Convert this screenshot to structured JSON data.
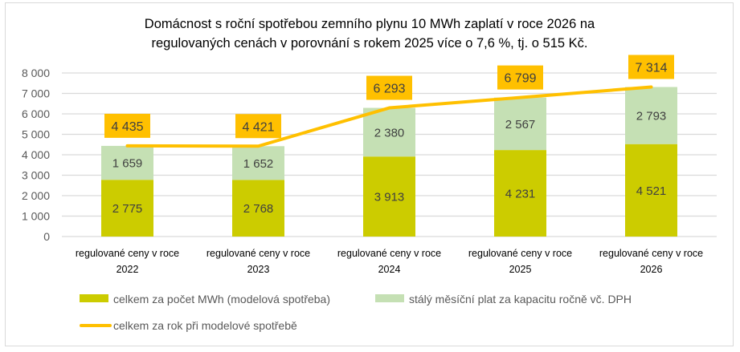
{
  "chart_data": {
    "type": "bar",
    "stacked": true,
    "title": "Domácnost s roční spotřebou zemního plynu 10 MWh zaplatí v roce 2026 na regulovaných cenách v porovnání s rokem 2025 více o 7,6 %, tj. o 515 Kč.",
    "title_lines": [
      "Domácnost s roční spotřebou zemního plynu 10 MWh zaplatí v roce 2026 na",
      "regulovaných cenách v porovnání s rokem 2025 více o 7,6 %, tj. o 515 Kč."
    ],
    "categories": [
      [
        "regulované ceny v roce",
        "2022"
      ],
      [
        "regulované ceny v roce",
        "2023"
      ],
      [
        "regulované ceny v roce",
        "2024"
      ],
      [
        "regulované ceny v roce",
        "2025"
      ],
      [
        "regulované ceny v roce",
        "2026"
      ]
    ],
    "series": [
      {
        "name": "celkem za počet MWh (modelová spotřeba)",
        "kind": "bar",
        "color": "#cccc00",
        "values": [
          2775,
          2768,
          3913,
          4231,
          4521
        ],
        "labels": [
          "2 775",
          "2 768",
          "3 913",
          "4 231",
          "4 521"
        ]
      },
      {
        "name": "stálý měsíční plat za kapacitu ročně vč. DPH",
        "kind": "bar",
        "color": "#c5e0b4",
        "values": [
          1659,
          1652,
          2380,
          2567,
          2793
        ],
        "labels": [
          "1 659",
          "1 652",
          "2 380",
          "2 567",
          "2 793"
        ]
      },
      {
        "name": "celkem za rok při modelové spotřebě",
        "kind": "line",
        "color": "#ffc000",
        "values": [
          4435,
          4421,
          6293,
          6799,
          7314
        ],
        "labels": [
          "4 435",
          "4 421",
          "6 293",
          "6 799",
          "7 314"
        ]
      }
    ],
    "y_ticks": [
      0,
      1000,
      2000,
      3000,
      4000,
      5000,
      6000,
      7000,
      8000
    ],
    "y_tick_labels": [
      "0",
      "1 000",
      "2 000",
      "3 000",
      "4 000",
      "5 000",
      "6 000",
      "7 000",
      "8 000"
    ],
    "ylim": [
      0,
      8000
    ],
    "xlabel": "",
    "ylabel": "",
    "grid": true,
    "legend_position": "bottom",
    "total_label_bg": "#ffc000",
    "grid_color": "#d9d9d9"
  }
}
